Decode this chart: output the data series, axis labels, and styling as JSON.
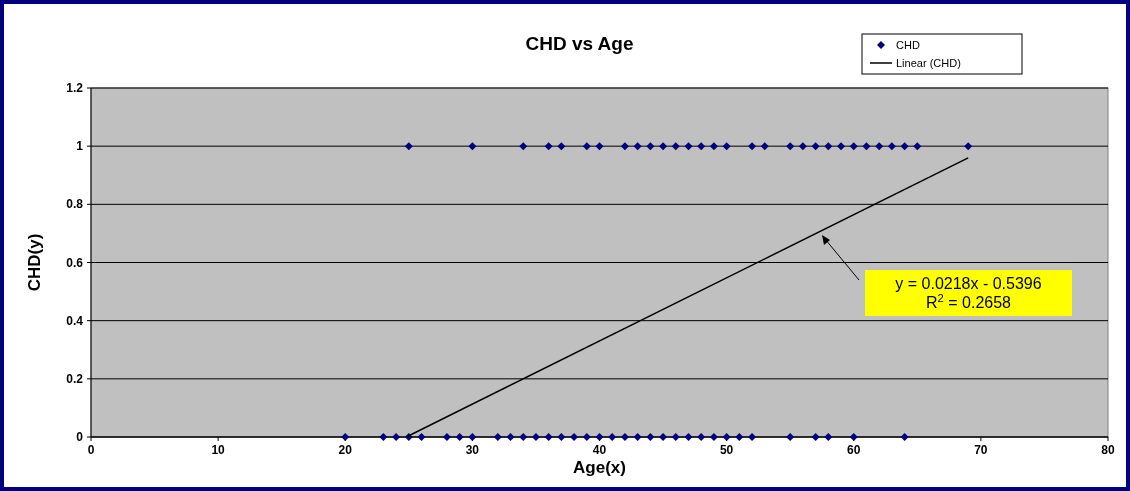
{
  "chart_data": {
    "type": "scatter",
    "title": "CHD vs Age",
    "xlabel": "Age(x)",
    "ylabel": "CHD(y)",
    "xlim": [
      0,
      80
    ],
    "xticks": [
      0,
      10,
      20,
      30,
      40,
      50,
      60,
      70,
      80
    ],
    "ylim": [
      0,
      1.2
    ],
    "yticks": [
      0,
      0.2,
      0.4,
      0.6,
      0.8,
      1,
      1.2
    ],
    "grid": "y",
    "legend": "top right",
    "marker": "diamond",
    "series": [
      {
        "name": "CHD",
        "color": "#000080",
        "x": [
          25,
          30,
          34,
          36,
          37,
          39,
          40,
          42,
          43,
          44,
          45,
          46,
          47,
          48,
          49,
          50,
          52,
          53,
          55,
          56,
          57,
          58,
          59,
          60,
          61,
          62,
          63,
          64,
          65,
          69,
          20,
          23,
          24,
          25,
          26,
          28,
          29,
          30,
          32,
          33,
          34,
          35,
          36,
          37,
          38,
          39,
          40,
          41,
          42,
          43,
          44,
          45,
          46,
          47,
          48,
          49,
          50,
          51,
          52,
          55,
          57,
          58,
          60,
          64
        ],
        "values": [
          1,
          1,
          1,
          1,
          1,
          1,
          1,
          1,
          1,
          1,
          1,
          1,
          1,
          1,
          1,
          1,
          1,
          1,
          1,
          1,
          1,
          1,
          1,
          1,
          1,
          1,
          1,
          1,
          1,
          1,
          0,
          0,
          0,
          0,
          0,
          0,
          0,
          0,
          0,
          0,
          0,
          0,
          0,
          0,
          0,
          0,
          0,
          0,
          0,
          0,
          0,
          0,
          0,
          0,
          0,
          0,
          0,
          0,
          0,
          0,
          0,
          0,
          0,
          0
        ]
      },
      {
        "name": "Linear (CHD)",
        "type": "line",
        "marker": "none",
        "color": "#000000",
        "x": [
          24.8,
          69
        ],
        "values": [
          0,
          0.96
        ]
      }
    ],
    "annotations": [
      "y = 0.0218x - 0.5396\nR$^{2}$ = 0.2658"
    ]
  }
}
